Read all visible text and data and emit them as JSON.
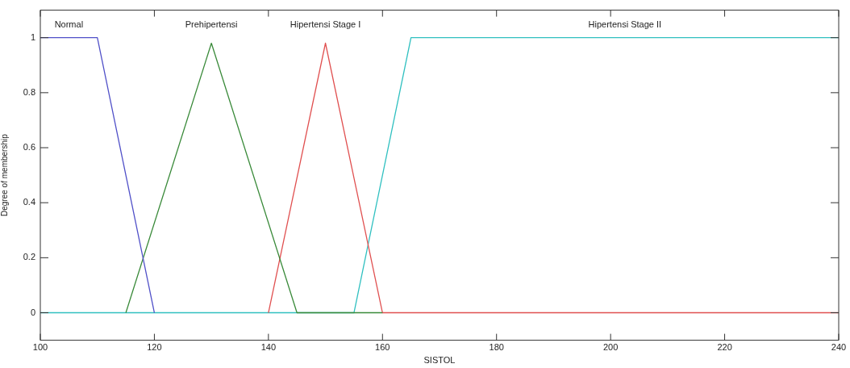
{
  "chart_data": {
    "type": "line",
    "xlabel": "SISTOL",
    "ylabel": "Degree of membership",
    "xlim": [
      100,
      240
    ],
    "xticks": [
      100,
      120,
      140,
      160,
      180,
      200,
      220,
      240
    ],
    "ylim": [
      -0.1,
      1.1
    ],
    "yticks": [
      0,
      0.2,
      0.4,
      0.6,
      0.8,
      1
    ],
    "grid": false,
    "marker": "none",
    "line_style": "solid",
    "series": [
      {
        "name": "Normal",
        "color": "#5050c8",
        "x": [
          100,
          110,
          120
        ],
        "values": [
          1,
          1,
          0
        ]
      },
      {
        "name": "Prehipertensi",
        "color": "#3a8a3a",
        "x": [
          115,
          130,
          145,
          160
        ],
        "values": [
          0,
          0.98,
          0,
          0
        ]
      },
      {
        "name": "Hipertensi Stage I",
        "color": "#e05050",
        "x": [
          140,
          150,
          160,
          240
        ],
        "values": [
          0,
          0.98,
          0,
          0
        ]
      },
      {
        "name": "Hipertensi Stage II",
        "color": "#30c0c0",
        "x": [
          100,
          155,
          165,
          240
        ],
        "values": [
          0,
          0,
          1,
          1
        ]
      }
    ]
  }
}
